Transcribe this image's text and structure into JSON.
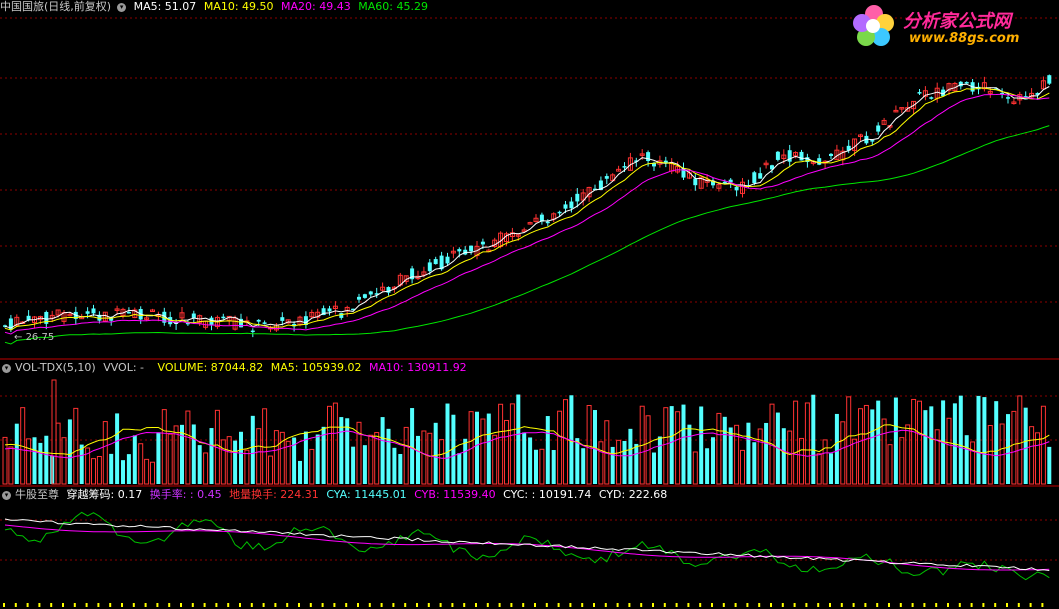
{
  "colors": {
    "bg": "#000000",
    "up": "#ff3232",
    "down": "#54ffff",
    "ma5": "#ffffff",
    "ma10": "#ffff00",
    "ma20": "#ff00ff",
    "ma60": "#00e600",
    "grid": "#8b0000",
    "divider": "#c00000",
    "turnover": "#cc33ff",
    "bottom_white": "#ffffff",
    "bottom_green": "#00c000"
  },
  "price_panel": {
    "stock_name": "中国国旅(日线,前复权)",
    "menu_icon": "chevron-down-icon",
    "ma5": "MA5: 51.07",
    "ma10": "MA10: 49.50",
    "ma20": "MA20: 49.43",
    "ma60": "MA60: 45.29",
    "low_marker": "26.75"
  },
  "volume_panel": {
    "indicator": "VOL-TDX(5,10)",
    "vvol": "VVOL: -",
    "volume": "VOLUME: 87044.82",
    "ma5": "MA5: 105939.02",
    "ma10": "MA10: 130911.92"
  },
  "bottom_panel": {
    "name": "牛股至尊",
    "cross": "穿越筹码: 0.17",
    "turnover_rate": "换手率: : 0.45",
    "ground_turnover": "地量换手: 224.31",
    "cya": "CYA: 11445.01",
    "cyb": "CYB: 11539.40",
    "cyc": "CYC: : 10191.74",
    "cyd": "CYD: 222.68"
  },
  "logo": {
    "icon": "flower-logo-icon",
    "title": "分析家公式网",
    "url": "www.88gs.com"
  }
}
